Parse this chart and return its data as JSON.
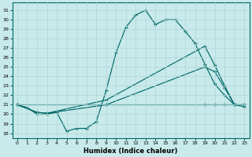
{
  "xlabel": "Humidex (Indice chaleur)",
  "bg_color": "#c8eaea",
  "grid_color": "#b0d4d4",
  "line_color": "#006868",
  "xlim": [
    -0.5,
    23.5
  ],
  "ylim": [
    17.5,
    31.8
  ],
  "yticks": [
    18,
    19,
    20,
    21,
    22,
    23,
    24,
    25,
    26,
    27,
    28,
    29,
    30,
    31
  ],
  "xticks": [
    0,
    1,
    2,
    3,
    4,
    5,
    6,
    7,
    8,
    9,
    10,
    11,
    12,
    13,
    14,
    15,
    16,
    17,
    18,
    19,
    20,
    21,
    22,
    23
  ],
  "series": [
    {
      "x": [
        0,
        1,
        2,
        3,
        4,
        5,
        6,
        7,
        8,
        9,
        10,
        11,
        12,
        13,
        14,
        15,
        16,
        17,
        18,
        19,
        20,
        21,
        22
      ],
      "y": [
        21.0,
        20.7,
        20.0,
        20.0,
        20.2,
        18.2,
        18.5,
        18.5,
        19.2,
        22.5,
        26.5,
        29.2,
        30.5,
        31.0,
        29.5,
        30.0,
        30.0,
        28.8,
        27.5,
        25.3,
        23.2,
        22.0,
        21.0
      ]
    },
    {
      "x": [
        0,
        2,
        3,
        9,
        19,
        20,
        21,
        22,
        23
      ],
      "y": [
        21.0,
        20.2,
        20.1,
        21.5,
        27.2,
        25.2,
        23.0,
        21.0,
        21.0
      ]
    },
    {
      "x": [
        0,
        2,
        3,
        9,
        19,
        20,
        21,
        22,
        23
      ],
      "y": [
        21.0,
        20.2,
        20.1,
        21.0,
        25.0,
        24.5,
        22.8,
        21.0,
        20.8
      ]
    },
    {
      "x": [
        0,
        9,
        19,
        20,
        21,
        22,
        23
      ],
      "y": [
        21.0,
        21.0,
        21.0,
        21.0,
        21.0,
        21.0,
        21.0
      ]
    }
  ]
}
